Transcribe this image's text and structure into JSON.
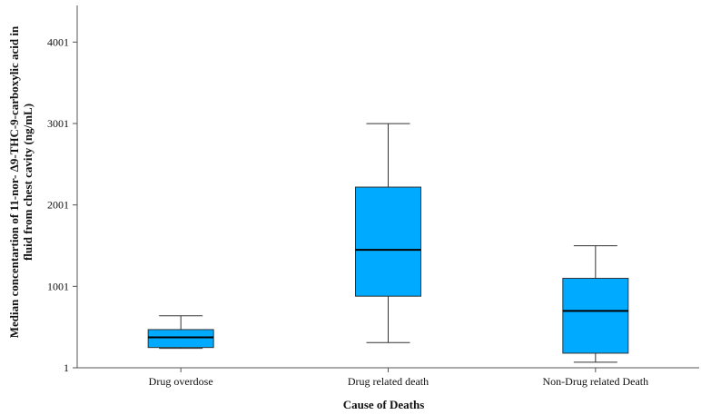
{
  "chart_data": {
    "type": "boxplot",
    "xlabel": "Cause of Deaths",
    "ylabel_lines": [
      "Median concentartion of 11-nor- Δ9-THC-9-carboxylic acid in",
      "fluid from chest cavity (ng/mL)"
    ],
    "ylim": [
      1,
      4451
    ],
    "yticks": [
      1,
      1001,
      2001,
      3001,
      4001
    ],
    "box_color": "#00aaff",
    "grid": false,
    "categories": [
      "Drug overdose",
      "Drug related death",
      "Non-Drug related Death"
    ],
    "boxes": [
      {
        "category": "Drug overdose",
        "min": 240,
        "q1": 250,
        "median": 375,
        "q3": 470,
        "max": 640
      },
      {
        "category": "Drug related death",
        "min": 310,
        "q1": 880,
        "median": 1450,
        "q3": 2220,
        "max": 3000
      },
      {
        "category": "Non-Drug related Death",
        "min": 70,
        "q1": 180,
        "median": 700,
        "q3": 1100,
        "max": 1500
      }
    ]
  }
}
